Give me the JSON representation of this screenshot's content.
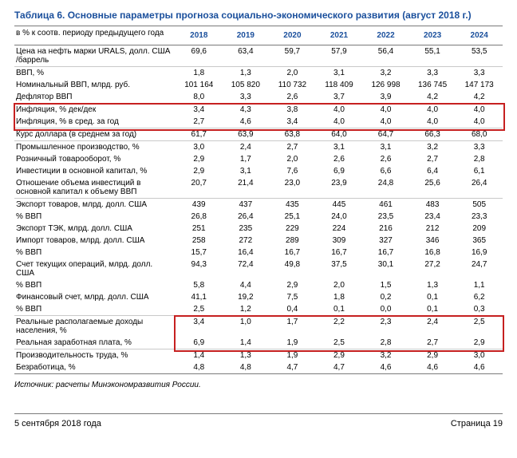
{
  "title": "Таблица 6. Основные параметры прогноза социально-экономического развития (август 2018 г.)",
  "header_label": "в % к соотв. периоду предыдущего года",
  "years": [
    "2018",
    "2019",
    "2020",
    "2021",
    "2022",
    "2023",
    "2024"
  ],
  "rows": [
    {
      "label": "Цена на нефть марки URALS, долл. США /баррель",
      "v": [
        "69,6",
        "63,4",
        "59,7",
        "57,9",
        "56,4",
        "55,1",
        "53,5"
      ],
      "group_end": true
    },
    {
      "label": "ВВП, %",
      "v": [
        "1,8",
        "1,3",
        "2,0",
        "3,1",
        "3,2",
        "3,3",
        "3,3"
      ]
    },
    {
      "label": "Номинальный ВВП, млрд. руб.",
      "v": [
        "101 164",
        "105 820",
        "110 732",
        "118 409",
        "126 998",
        "136 745",
        "147 173"
      ]
    },
    {
      "label": "Дефлятор ВВП",
      "v": [
        "8,0",
        "3,3",
        "2,6",
        "3,7",
        "3,9",
        "4,2",
        "4,2"
      ],
      "group_end": true
    },
    {
      "label": "Инфляция, % дек/дек",
      "v": [
        "3,4",
        "4,3",
        "3,8",
        "4,0",
        "4,0",
        "4,0",
        "4,0"
      ]
    },
    {
      "label": "Инфляция, % в сред. за год",
      "v": [
        "2,7",
        "4,6",
        "3,4",
        "4,0",
        "4,0",
        "4,0",
        "4,0"
      ],
      "group_end": true
    },
    {
      "label": "Курс доллара (в среднем за год)",
      "v": [
        "61,7",
        "63,9",
        "63,8",
        "64,0",
        "64,7",
        "66,3",
        "68,0"
      ],
      "group_end": true
    },
    {
      "label": "Промышленное производство, %",
      "v": [
        "3,0",
        "2,4",
        "2,7",
        "3,1",
        "3,1",
        "3,2",
        "3,3"
      ]
    },
    {
      "label": "Розничный товарооборот, %",
      "v": [
        "2,9",
        "1,7",
        "2,0",
        "2,6",
        "2,6",
        "2,7",
        "2,8"
      ]
    },
    {
      "label": "Инвестиции в основной капитал, %",
      "v": [
        "2,9",
        "3,1",
        "7,6",
        "6,9",
        "6,6",
        "6,4",
        "6,1"
      ]
    },
    {
      "label": "Отношение объема инвестиций в основной капитал к объему ВВП",
      "v": [
        "20,7",
        "21,4",
        "23,0",
        "23,9",
        "24,8",
        "25,6",
        "26,4"
      ],
      "group_end": true
    },
    {
      "label": "Экспорт товаров, млрд. долл. США",
      "v": [
        "439",
        "437",
        "435",
        "445",
        "461",
        "483",
        "505"
      ]
    },
    {
      "label": "  % ВВП",
      "v": [
        "26,8",
        "26,4",
        "25,1",
        "24,0",
        "23,5",
        "23,4",
        "23,3"
      ]
    },
    {
      "label": "Экспорт ТЭК, млрд. долл. США",
      "v": [
        "251",
        "235",
        "229",
        "224",
        "216",
        "212",
        "209"
      ]
    },
    {
      "label": "Импорт товаров, млрд. долл. США",
      "v": [
        "258",
        "272",
        "289",
        "309",
        "327",
        "346",
        "365"
      ]
    },
    {
      "label": "  % ВВП",
      "v": [
        "15,7",
        "16,4",
        "16,7",
        "16,7",
        "16,7",
        "16,8",
        "16,9"
      ]
    },
    {
      "label": "Счет текущих операций, млрд. долл. США",
      "v": [
        "94,3",
        "72,4",
        "49,8",
        "37,5",
        "30,1",
        "27,2",
        "24,7"
      ]
    },
    {
      "label": "  % ВВП",
      "v": [
        "5,8",
        "4,4",
        "2,9",
        "2,0",
        "1,5",
        "1,3",
        "1,1"
      ]
    },
    {
      "label": "Финансовый счет, млрд. долл. США",
      "v": [
        "41,1",
        "19,2",
        "7,5",
        "1,8",
        "0,2",
        "0,1",
        "6,2"
      ]
    },
    {
      "label": "  % ВВП",
      "v": [
        "2,5",
        "1,2",
        "0,4",
        "0,1",
        "0,0",
        "0,1",
        "0,3"
      ],
      "group_end": true
    },
    {
      "label": "Реальные располагаемые доходы населения, %",
      "v": [
        "3,4",
        "1,0",
        "1,7",
        "2,2",
        "2,3",
        "2,4",
        "2,5"
      ]
    },
    {
      "label": "Реальная заработная плата, %",
      "v": [
        "6,9",
        "1,4",
        "1,9",
        "2,5",
        "2,8",
        "2,7",
        "2,9"
      ],
      "group_end": true
    },
    {
      "label": "Производительность труда, %",
      "v": [
        "1,4",
        "1,3",
        "1,9",
        "2,9",
        "3,2",
        "2,9",
        "3,0"
      ]
    },
    {
      "label": "Безработица, %",
      "v": [
        "4,8",
        "4,8",
        "4,7",
        "4,7",
        "4,6",
        "4,6",
        "4,6"
      ],
      "last": true
    }
  ],
  "highlight_full_rows": [
    4,
    5
  ],
  "highlight_partial": {
    "rows": [
      20,
      21
    ],
    "from_col": 1
  },
  "source": "Источник: расчеты Минэкономразвития России.",
  "footer_left": "5 сентября 2018 года",
  "footer_right": "Страница 19",
  "colors": {
    "accent": "#1a4f9c",
    "highlight_border": "#c62020",
    "rule": "#7a7a7a",
    "sub_rule": "#c9c9c9"
  },
  "col_widths": {
    "label_pct": 33,
    "val_pct": 9.57
  }
}
